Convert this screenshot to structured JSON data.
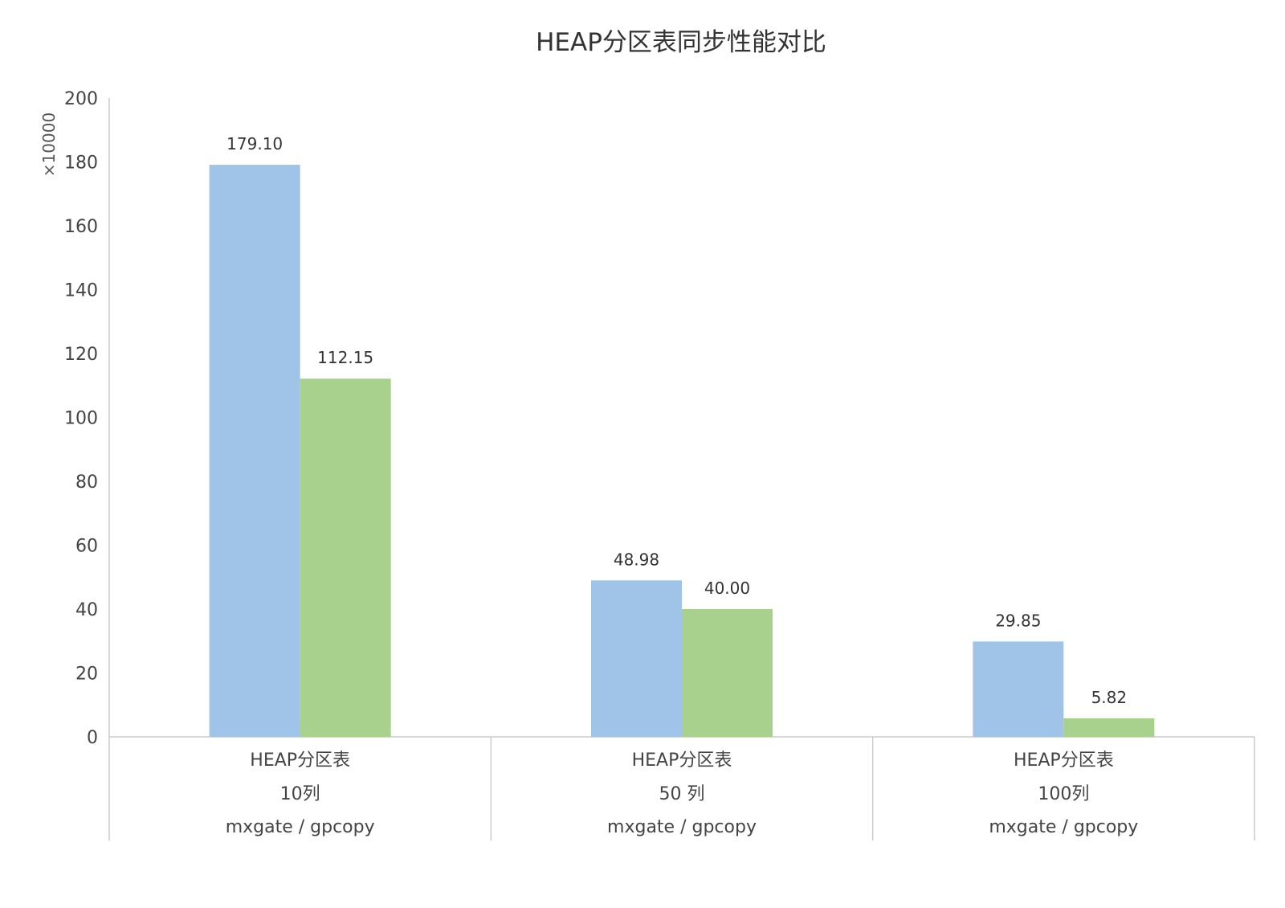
{
  "chart_data": {
    "type": "bar",
    "title": "HEAP分区表同步性能对比",
    "ylabel": "×10000",
    "xlabel": "",
    "ylim": [
      0,
      200
    ],
    "yticks": [
      0,
      20,
      40,
      60,
      80,
      100,
      120,
      140,
      160,
      180,
      200
    ],
    "grid": false,
    "categories": [
      {
        "line1": "HEAP分区表",
        "line2": "10列",
        "line3": "mxgate / gpcopy"
      },
      {
        "line1": "HEAP分区表",
        "line2": "50 列",
        "line3": "mxgate / gpcopy"
      },
      {
        "line1": "HEAP分区表",
        "line2": "100列",
        "line3": "mxgate / gpcopy"
      }
    ],
    "series": [
      {
        "color": "#9fc4e7",
        "values": [
          179.1,
          48.98,
          29.85
        ],
        "labels": [
          "179.10",
          "48.98",
          "29.85"
        ]
      },
      {
        "color": "#a8d18d",
        "values": [
          112.15,
          40.0,
          5.82
        ],
        "labels": [
          "112.15",
          "40.00",
          "5.82"
        ]
      }
    ]
  }
}
